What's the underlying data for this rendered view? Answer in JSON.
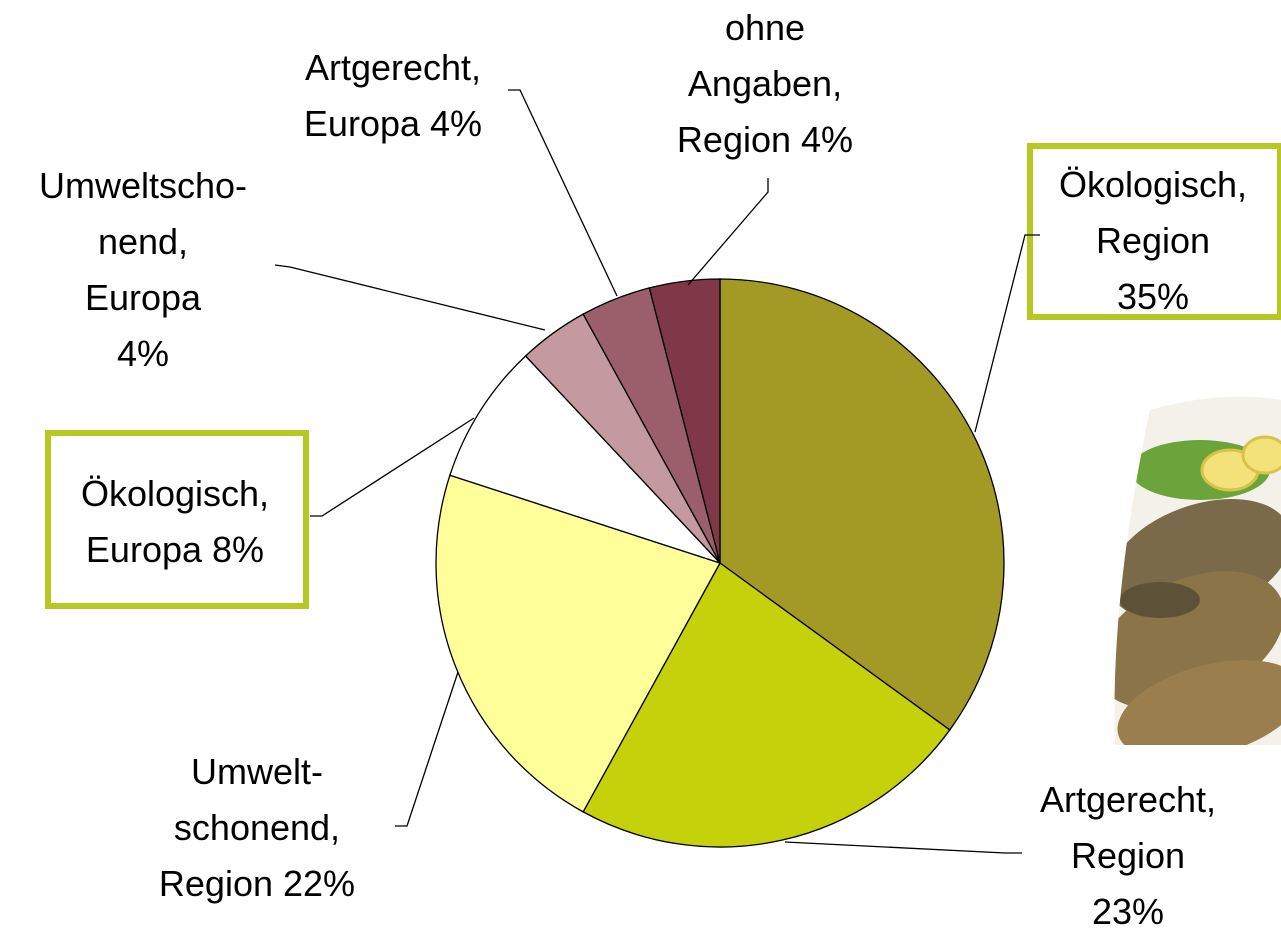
{
  "chart_data": {
    "type": "pie",
    "categories": [
      "Ökologisch,\nRegion",
      "Artgerecht,\nRegion",
      "Umwelt-\nschonend,\nRegion",
      "Ökologisch,\nEuropa",
      "Umweltscho-\nnend,\nEuropa",
      "Artgerecht,\nEuropa",
      "ohne\nAngaben,\nRegion"
    ],
    "values": [
      35,
      23,
      22,
      8,
      4,
      4,
      4
    ],
    "value_labels": [
      "35%",
      "23%",
      "22%",
      "8%",
      "4%",
      "4%",
      "4%"
    ],
    "colors": [
      "#a39a25",
      "#c5d10a",
      "#ffff99",
      "#ffffff",
      "#c49aa0",
      "#9a5f6b",
      "#7f3848"
    ]
  }
}
